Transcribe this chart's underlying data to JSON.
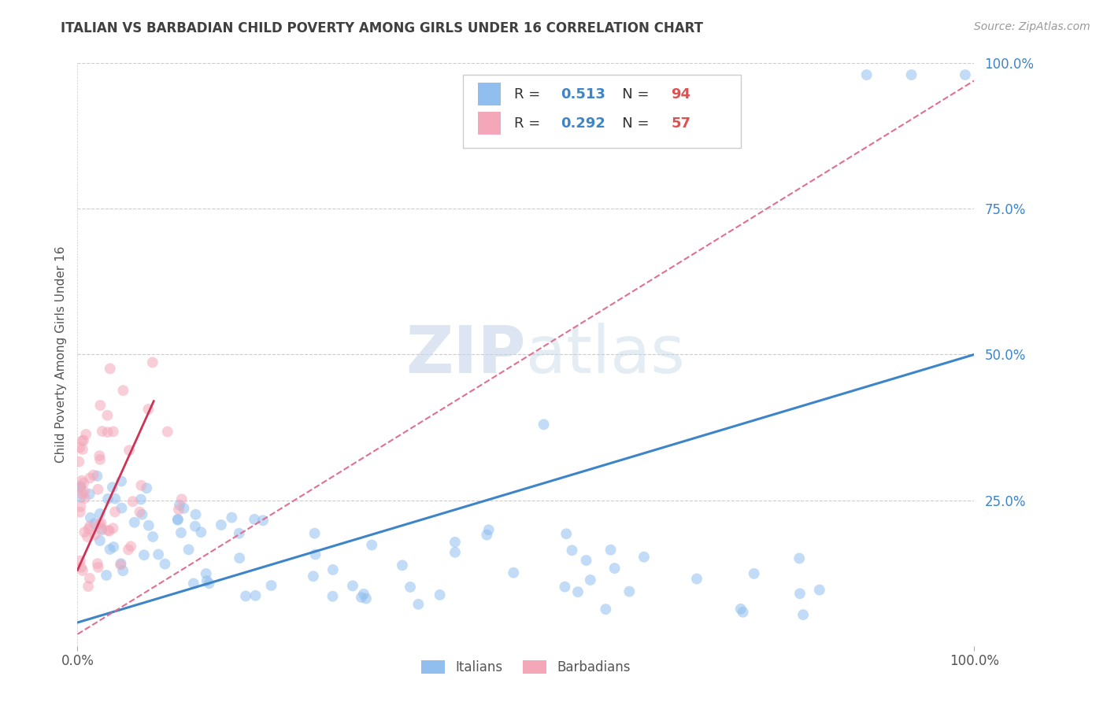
{
  "title": "ITALIAN VS BARBADIAN CHILD POVERTY AMONG GIRLS UNDER 16 CORRELATION CHART",
  "source": "Source: ZipAtlas.com",
  "ylabel": "Child Poverty Among Girls Under 16",
  "xlim": [
    0,
    1
  ],
  "ylim": [
    0,
    1
  ],
  "italian_color": "#90bfef",
  "barbadian_color": "#f4a7b9",
  "italian_R": 0.513,
  "italian_N": 94,
  "barbadian_R": 0.292,
  "barbadian_N": 57,
  "italian_line_color": "#3d85c8",
  "barbadian_line_color": "#e07090",
  "watermark_zip": "ZIP",
  "watermark_atlas": "atlas",
  "title_color": "#404040",
  "source_color": "#999999",
  "legend_R_color": "#3d85c8",
  "legend_N_color": "#e05050",
  "scatter_alpha": 0.55,
  "scatter_size": 100,
  "grid_color": "#cccccc",
  "background_color": "#ffffff",
  "ytick_color": "#3d85c8",
  "xtick_color": "#555555"
}
